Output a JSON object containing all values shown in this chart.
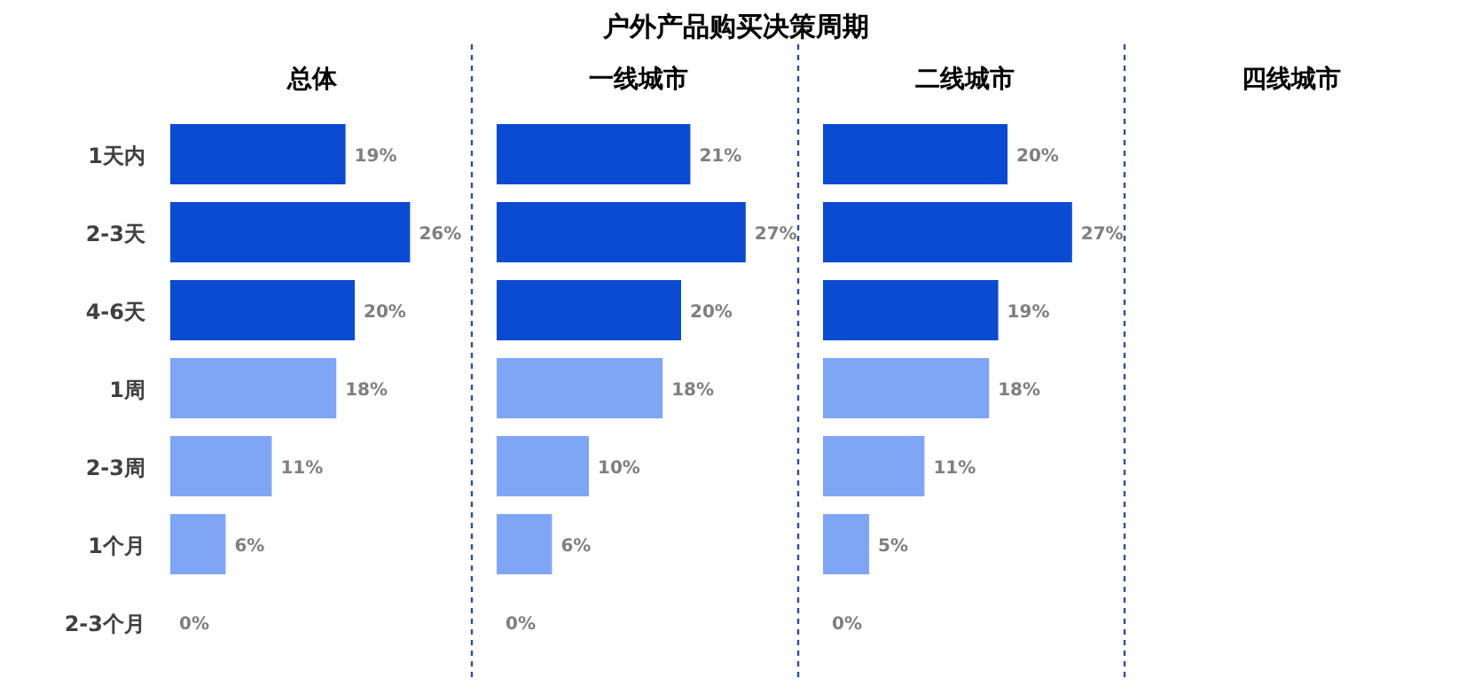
{
  "chart_data": [
    {
      "type": "bar",
      "orientation": "horizontal",
      "title": "总体",
      "annotations": [
        "户外产品购买决策周期"
      ],
      "categories": [
        "1天内",
        "2-3天",
        "4-6天",
        "1周",
        "2-3周",
        "1个月",
        "2-3个月"
      ],
      "values": [
        19,
        26,
        20,
        18,
        11,
        6,
        0
      ],
      "value_labels": [
        "19%",
        "26%",
        "20%",
        "18%",
        "11%",
        "6%",
        "0%"
      ],
      "colors": [
        "#0a4bd1",
        "#0a4bd1",
        "#0a4bd1",
        "#7fa6f5",
        "#7fa6f5",
        "#7fa6f5",
        "#7fa6f5"
      ],
      "tick_labels": "y"
    },
    {
      "type": "bar",
      "orientation": "horizontal",
      "title": "一线城市",
      "categories": [
        null,
        null,
        null,
        null,
        null,
        null,
        null
      ],
      "values": [
        21,
        27,
        20,
        18,
        10,
        6,
        0
      ],
      "value_labels": [
        "21%",
        "27%",
        "20%",
        "18%",
        "10%",
        "6%",
        "0%"
      ],
      "colors": [
        "#0a4bd1",
        "#0a4bd1",
        "#0a4bd1",
        "#7fa6f5",
        "#7fa6f5",
        "#7fa6f5",
        "#7fa6f5"
      ],
      "tick_labels": false
    },
    {
      "type": "bar",
      "orientation": "horizontal",
      "title": "二线城市",
      "categories": [
        null,
        null,
        null,
        null,
        null,
        null,
        null
      ],
      "values": [
        20,
        27,
        19,
        18,
        11,
        5,
        0
      ],
      "value_labels": [
        "20%",
        "27%",
        "19%",
        "18%",
        "11%",
        "5%",
        "0%"
      ],
      "colors": [
        "#0a4bd1",
        "#0a4bd1",
        "#0a4bd1",
        "#7fa6f5",
        "#7fa6f5",
        "#7fa6f5",
        "#7fa6f5"
      ],
      "tick_labels": false
    },
    {
      "type": "other",
      "title": "四线城市"
    }
  ]
}
